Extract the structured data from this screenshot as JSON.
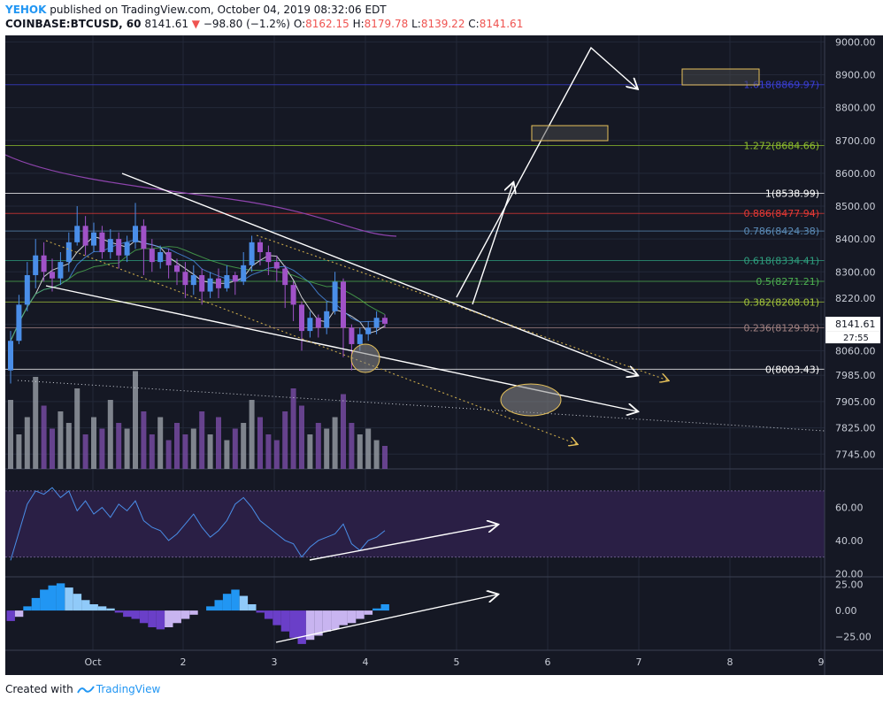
{
  "header": {
    "author": "YEHOK",
    "published_text": "published on TradingView.com, October 04, 2019 08:32:06 EDT",
    "symbol": "COINBASE:BTCUSD, 60",
    "last": "8141.61",
    "change_arrow": "▼",
    "change": "−98.80 (−1.2%)",
    "o_label": "O:",
    "o_val": "8162.15",
    "h_label": "H:",
    "h_val": "8179.78",
    "l_label": "L:",
    "l_val": "8139.22",
    "c_label": "C:",
    "c_val": "8141.61"
  },
  "footer": {
    "created_with": "Created with",
    "brand": "TradingView"
  },
  "colors": {
    "background": "#151824",
    "rsi_band": "#2a1f45",
    "bull": "#4a8ee8",
    "bear": "#a052c8",
    "fib_blue": "#3b3fd6",
    "fib_green": "#8fbf2d",
    "fib_red": "#e53935",
    "fib_steel": "#5b8cb8",
    "fib_teal": "#2e9e7e"
  },
  "chart_data": {
    "type": "candlestick",
    "title": "",
    "x_ticks": [
      "Oct",
      "2",
      "3",
      "4",
      "5",
      "6",
      "7",
      "8",
      "9"
    ],
    "price_axis": {
      "range": [
        7700,
        9020
      ],
      "ticks": [
        "9000.00",
        "8900.00",
        "8800.00",
        "8700.00",
        "8600.00",
        "8500.00",
        "8400.00",
        "8300.00",
        "8220.00",
        "8140.00",
        "8060.00",
        "7985.00",
        "7905.00",
        "7825.00",
        "7745.00"
      ],
      "last_price_label": "8141.61",
      "countdown": "27:55"
    },
    "fib_levels": [
      {
        "label": "1.618(8869.97)",
        "price": 8869.97,
        "color": "#3b3fd6"
      },
      {
        "label": "1.272(8684.66)",
        "price": 8684.66,
        "color": "#8fbf2d"
      },
      {
        "label": "1(8538.99)",
        "price": 8538.99,
        "color": "#ffffff"
      },
      {
        "label": "0.886(8477.94)",
        "price": 8477.94,
        "color": "#e53935"
      },
      {
        "label": "0.786(8424.38)",
        "price": 8424.38,
        "color": "#5b8cb8"
      },
      {
        "label": "0.618(8334.41)",
        "price": 8334.41,
        "color": "#2e9e7e"
      },
      {
        "label": "0.5(8271.21)",
        "price": 8271.21,
        "color": "#4caf50"
      },
      {
        "label": "0.382(8208.01)",
        "price": 8208.01,
        "color": "#a3c43a"
      },
      {
        "label": "0.236(8129.82)",
        "price": 8129.82,
        "color": "#a08080"
      },
      {
        "label": "0(8003.43)",
        "price": 8003.43,
        "color": "#ffffff"
      }
    ],
    "rsi": {
      "ticks": [
        "60.00",
        "40.00",
        "20.00"
      ],
      "range": [
        18,
        78
      ],
      "band": [
        30,
        70
      ]
    },
    "macd": {
      "ticks": [
        "25.00",
        "0.00",
        "−25.00"
      ],
      "range": [
        -38,
        28
      ]
    },
    "candles": [
      [
        8000,
        8090,
        7960,
        8120
      ],
      [
        8090,
        8200,
        8080,
        8230
      ],
      [
        8200,
        8290,
        8180,
        8330
      ],
      [
        8290,
        8350,
        8250,
        8400
      ],
      [
        8350,
        8300,
        8270,
        8390
      ],
      [
        8300,
        8280,
        8240,
        8340
      ],
      [
        8280,
        8330,
        8260,
        8360
      ],
      [
        8330,
        8390,
        8300,
        8420
      ],
      [
        8390,
        8440,
        8380,
        8500
      ],
      [
        8440,
        8380,
        8350,
        8470
      ],
      [
        8380,
        8420,
        8360,
        8450
      ],
      [
        8420,
        8360,
        8340,
        8440
      ],
      [
        8360,
        8400,
        8340,
        8430
      ],
      [
        8400,
        8350,
        8310,
        8420
      ],
      [
        8350,
        8390,
        8330,
        8410
      ],
      [
        8390,
        8440,
        8370,
        8510
      ],
      [
        8440,
        8370,
        8290,
        8460
      ],
      [
        8370,
        8330,
        8300,
        8400
      ],
      [
        8330,
        8360,
        8310,
        8380
      ],
      [
        8360,
        8320,
        8280,
        8370
      ],
      [
        8320,
        8300,
        8260,
        8340
      ],
      [
        8300,
        8260,
        8220,
        8330
      ],
      [
        8260,
        8290,
        8230,
        8320
      ],
      [
        8290,
        8240,
        8200,
        8310
      ],
      [
        8240,
        8280,
        8220,
        8300
      ],
      [
        8280,
        8250,
        8220,
        8310
      ],
      [
        8250,
        8290,
        8240,
        8320
      ],
      [
        8290,
        8270,
        8230,
        8300
      ],
      [
        8270,
        8320,
        8260,
        8360
      ],
      [
        8320,
        8390,
        8300,
        8410
      ],
      [
        8390,
        8360,
        8320,
        8400
      ],
      [
        8360,
        8330,
        8290,
        8380
      ],
      [
        8330,
        8310,
        8270,
        8350
      ],
      [
        8310,
        8260,
        8190,
        8320
      ],
      [
        8260,
        8200,
        8150,
        8270
      ],
      [
        8200,
        8120,
        8060,
        8210
      ],
      [
        8120,
        8160,
        8100,
        8180
      ],
      [
        8160,
        8130,
        8100,
        8170
      ],
      [
        8130,
        8180,
        8110,
        8210
      ],
      [
        8180,
        8270,
        8170,
        8300
      ],
      [
        8270,
        8130,
        8040,
        8280
      ],
      [
        8130,
        8080,
        8000,
        8140
      ],
      [
        8080,
        8110,
        8060,
        8130
      ],
      [
        8110,
        8130,
        8090,
        8150
      ],
      [
        8130,
        8160,
        8110,
        8180
      ],
      [
        8160,
        8142,
        8130,
        8170
      ]
    ],
    "volume": [
      60,
      30,
      45,
      80,
      55,
      35,
      50,
      40,
      70,
      30,
      45,
      35,
      60,
      40,
      35,
      85,
      50,
      30,
      45,
      25,
      40,
      30,
      35,
      50,
      30,
      45,
      25,
      35,
      40,
      60,
      45,
      30,
      25,
      50,
      70,
      55,
      30,
      40,
      35,
      45,
      65,
      40,
      30,
      35,
      25,
      20
    ],
    "rsi_values": [
      28,
      45,
      62,
      70,
      68,
      72,
      66,
      70,
      58,
      64,
      56,
      60,
      54,
      62,
      58,
      64,
      52,
      48,
      46,
      40,
      44,
      50,
      56,
      48,
      42,
      46,
      52,
      62,
      66,
      60,
      52,
      48,
      44,
      40,
      38,
      30,
      36,
      40,
      42,
      44,
      50,
      38,
      34,
      40,
      42,
      46
    ],
    "macd_values": [
      -10,
      -6,
      4,
      12,
      20,
      24,
      26,
      22,
      16,
      10,
      6,
      4,
      2,
      -2,
      -6,
      -8,
      -12,
      -16,
      -18,
      -16,
      -12,
      -8,
      -4,
      0,
      4,
      10,
      16,
      20,
      14,
      6,
      -2,
      -8,
      -14,
      -20,
      -26,
      -32,
      -28,
      -24,
      -20,
      -18,
      -14,
      -12,
      -8,
      -4,
      2,
      6
    ]
  }
}
